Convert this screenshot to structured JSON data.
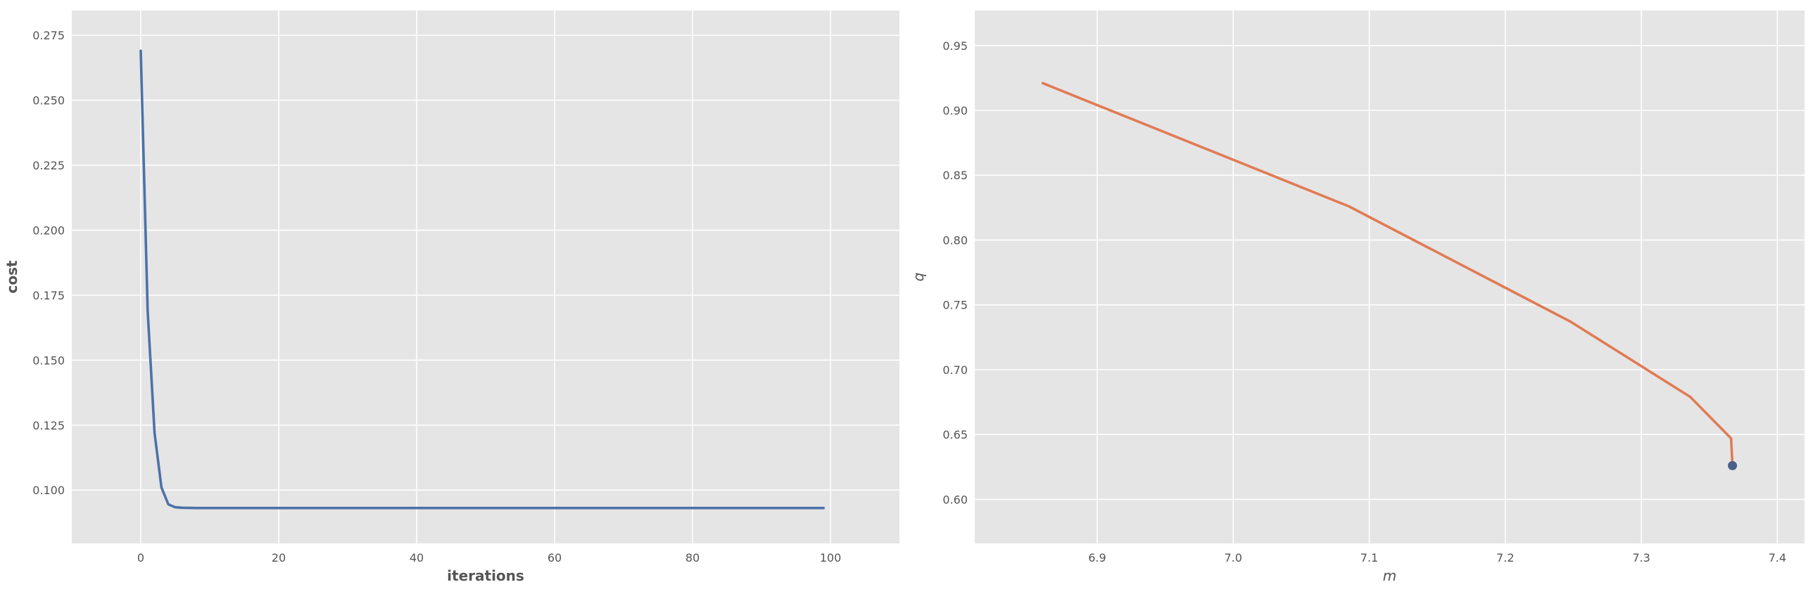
{
  "chart_data": [
    {
      "type": "line",
      "xlabel": "iterations",
      "ylabel": "cost",
      "xlim": [
        -10,
        110
      ],
      "ylim": [
        0.0795,
        0.2845
      ],
      "xticks": [
        0,
        20,
        40,
        60,
        80,
        100
      ],
      "yticks": [
        0.1,
        0.125,
        0.15,
        0.175,
        0.2,
        0.225,
        0.25,
        0.275
      ],
      "ytick_labels": [
        "0.100",
        "0.125",
        "0.150",
        "0.175",
        "0.200",
        "0.225",
        "0.250",
        "0.275"
      ],
      "grid": true,
      "series": [
        {
          "color": "#4c72a8",
          "x": [
            0,
            1,
            2,
            3,
            4,
            5,
            6,
            8,
            10,
            20,
            30,
            40,
            50,
            60,
            70,
            80,
            90,
            99
          ],
          "y": [
            0.269,
            0.169,
            0.122,
            0.101,
            0.0945,
            0.0934,
            0.0932,
            0.0931,
            0.0931,
            0.0931,
            0.0931,
            0.0931,
            0.0931,
            0.0931,
            0.0931,
            0.0931,
            0.0931,
            0.0931
          ]
        }
      ]
    },
    {
      "type": "line",
      "xlabel": "m",
      "ylabel": "q",
      "xlim": [
        6.81,
        7.42
      ],
      "ylim": [
        0.566,
        0.977
      ],
      "xticks": [
        6.9,
        7.0,
        7.1,
        7.2,
        7.3,
        7.4
      ],
      "xtick_labels": [
        "6.9",
        "7.0",
        "7.1",
        "7.2",
        "7.3",
        "7.4"
      ],
      "yticks": [
        0.6,
        0.65,
        0.7,
        0.75,
        0.8,
        0.85,
        0.9,
        0.95
      ],
      "ytick_labels": [
        "0.60",
        "0.65",
        "0.70",
        "0.75",
        "0.80",
        "0.85",
        "0.90",
        "0.95"
      ],
      "grid": true,
      "series": [
        {
          "color": "#e07b54",
          "x": [
            6.86,
            7.085,
            7.248,
            7.336,
            7.366,
            7.367
          ],
          "y": [
            0.921,
            0.826,
            0.737,
            0.679,
            0.647,
            0.626
          ]
        }
      ],
      "marker": {
        "x": 7.367,
        "y": 0.626,
        "color": "#4c5f8a"
      }
    }
  ]
}
